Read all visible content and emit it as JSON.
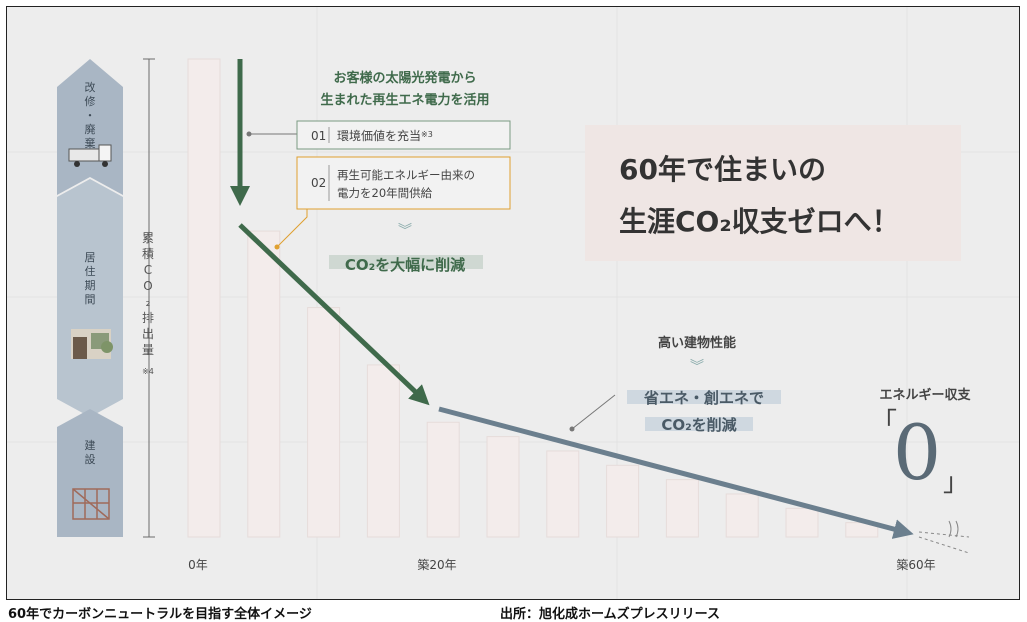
{
  "colors": {
    "background": "#ededed",
    "bar": "#f3eceb",
    "green_arrow": "#3f6a4b",
    "slate_arrow": "#6b7f8e",
    "stage_panel": "#a9b6c4",
    "text": "#4a4a4a",
    "headline_box": "#efe6e4",
    "highlight": "#cfd8e0"
  },
  "stages": [
    {
      "label": "改修・廃棄",
      "icon": "truck-icon"
    },
    {
      "label": "居住期間",
      "icon": "house-icon"
    },
    {
      "label": "建設",
      "icon": "building-frame-icon"
    }
  ],
  "headline": {
    "line1": "60年で住まいの",
    "line2": "生涯CO₂収支ゼロへ！"
  },
  "annotations": {
    "solar_title_1": "お客様の太陽光発電から",
    "solar_title_2": "生まれた再生エネ電力を活用",
    "item1_num": "01",
    "item1_text": "環境価値を充当",
    "item1_note": "※3",
    "item2_num": "02",
    "item2_text_1": "再生可能エネルギー由来の",
    "item2_text_2": "電力を20年間供給",
    "reduce1": "CO₂を大幅に削減",
    "perf_title": "高い建物性能",
    "save_1": "省エネ・創エネで",
    "save_2": "CO₂を削減",
    "balance_label": "エネルギー収支",
    "balance_value": "0",
    "bracket_open": "「",
    "bracket_close": "」"
  },
  "chart_data": {
    "type": "bar",
    "ylabel": "累積CO₂排出量",
    "ylabel_note": "※4",
    "x_tick_labels": [
      "0年",
      "築20年",
      "築60年"
    ],
    "values": [
      100,
      64,
      48,
      36,
      24,
      21,
      18,
      15,
      12,
      9,
      6,
      3
    ],
    "ylim": [
      0,
      100
    ],
    "grid": true
  },
  "captions": {
    "left": "60年でカーボンニュートラルを目指す全体イメージ",
    "right": "出所：旭化成ホームズプレスリリース"
  }
}
